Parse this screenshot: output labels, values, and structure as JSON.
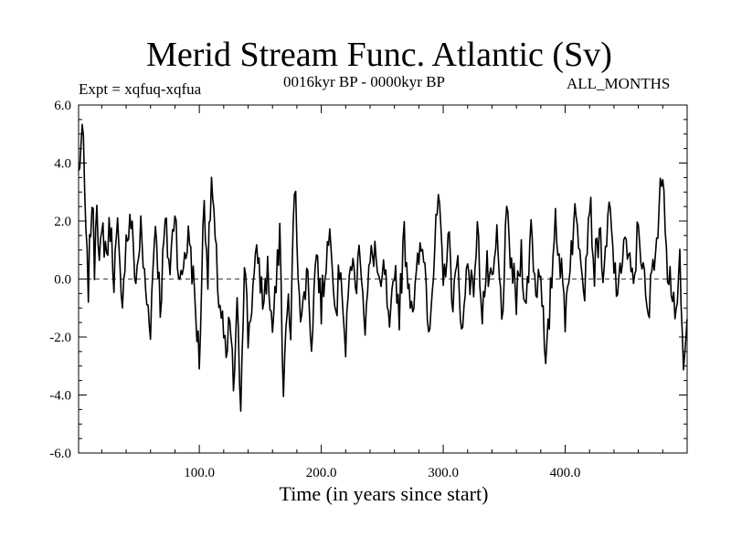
{
  "chart_data": {
    "type": "line",
    "title": "Merid Stream Func. Atlantic (Sv)",
    "subtitle_left": "Expt = xqfuq-xqfua",
    "subtitle_center": "0016kyr BP - 0000kyr BP",
    "subtitle_right": "ALL_MONTHS",
    "xlabel": "Time (in years since start)",
    "ylabel": "",
    "xlim": [
      1,
      500
    ],
    "ylim": [
      -6.0,
      6.0
    ],
    "xticks": [
      100,
      200,
      300,
      400
    ],
    "xtick_labels": [
      "100.0",
      "200.0",
      "300.0",
      "400.0"
    ],
    "yticks": [
      -6,
      -4,
      -2,
      0,
      2,
      4,
      6
    ],
    "ytick_labels": [
      "-6.0",
      "-4.0",
      "-2.0",
      "0.0",
      "2.0",
      "4.0",
      "6.0"
    ],
    "reference_line": 0.0,
    "series": [
      {
        "name": "xqfuq-xqfua",
        "anchors_x": [
          1,
          3,
          5,
          7,
          9,
          12,
          14,
          16,
          18,
          21,
          24,
          27,
          30,
          33,
          36,
          40,
          44,
          48,
          52,
          56,
          60,
          64,
          68,
          72,
          76,
          80,
          84,
          88,
          92,
          96,
          100,
          104,
          107,
          110,
          113,
          116,
          119,
          122,
          125,
          128,
          131,
          134,
          137,
          140,
          144,
          148,
          152,
          156,
          160,
          163,
          166,
          169,
          172,
          175,
          178,
          181,
          184,
          188,
          192,
          196,
          200,
          204,
          208,
          212,
          216,
          220,
          224,
          228,
          232,
          236,
          240,
          244,
          248,
          252,
          256,
          260,
          264,
          268,
          272,
          276,
          280,
          284,
          288,
          292,
          296,
          300,
          304,
          308,
          312,
          316,
          320,
          324,
          328,
          332,
          336,
          340,
          344,
          348,
          352,
          356,
          360,
          364,
          368,
          372,
          376,
          380,
          384,
          388,
          392,
          396,
          400,
          404,
          408,
          412,
          416,
          420,
          424,
          428,
          432,
          436,
          440,
          444,
          448,
          452,
          456,
          460,
          464,
          468,
          472,
          476,
          480,
          484,
          488,
          492,
          494,
          497,
          500
        ],
        "anchors_y": [
          3.6,
          4.6,
          4.7,
          1.2,
          -0.2,
          2.9,
          0.6,
          3.2,
          0.4,
          1.6,
          0.9,
          1.9,
          0.2,
          1.6,
          -0.9,
          1.3,
          2.0,
          -0.1,
          1.7,
          -0.5,
          -1.5,
          2.1,
          -0.9,
          1.9,
          0.3,
          2.6,
          -0.4,
          0.9,
          1.5,
          -0.6,
          -2.8,
          2.9,
          0.2,
          3.4,
          1.1,
          -0.6,
          -1.5,
          -3.1,
          -1.3,
          -3.8,
          -1.2,
          -4.2,
          0.9,
          -2.0,
          -0.3,
          0.9,
          -0.8,
          0.3,
          -1.8,
          -0.4,
          1.8,
          -4.2,
          -0.6,
          -2.0,
          3.4,
          0.6,
          -1.6,
          0.5,
          -2.1,
          1.1,
          -1.0,
          0.8,
          1.7,
          -1.1,
          0.7,
          -2.7,
          0.9,
          -0.3,
          1.2,
          -1.6,
          0.5,
          1.1,
          -0.7,
          0.4,
          -2.3,
          0.6,
          -1.1,
          1.5,
          -0.2,
          -0.9,
          0.7,
          1.1,
          -1.5,
          0.3,
          2.8,
          -0.3,
          1.6,
          -0.7,
          0.4,
          -1.9,
          0.9,
          -0.6,
          1.6,
          -1.0,
          0.3,
          -0.5,
          1.4,
          -1.4,
          2.0,
          0.5,
          -0.8,
          1.0,
          -1.1,
          1.9,
          -0.4,
          0.6,
          -3.4,
          -0.6,
          2.3,
          0.5,
          -1.2,
          0.8,
          2.1,
          1.4,
          -0.1,
          2.9,
          0.3,
          1.8,
          -0.2,
          2.5,
          0.4,
          -0.6,
          1.6,
          0.6,
          -0.4,
          2.0,
          0.2,
          -1.6,
          0.8,
          1.6,
          4.1,
          0.5,
          -0.3,
          -1.5,
          0.7,
          -3.4,
          -1.7
        ]
      }
    ]
  }
}
